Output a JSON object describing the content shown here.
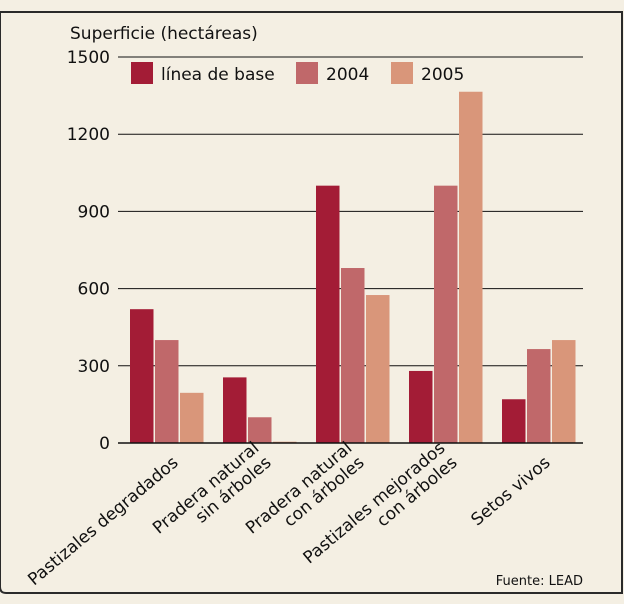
{
  "chart_data": {
    "type": "bar",
    "title": "",
    "ylabel": "Superficie (hectáreas)",
    "xlabel": "",
    "ylim": [
      0,
      1500
    ],
    "yticks": [
      0,
      300,
      600,
      900,
      1200,
      1500
    ],
    "grid": true,
    "legend_position": "top",
    "categories": [
      [
        "Pastizales degradados"
      ],
      [
        "Pradera natural",
        "sin árboles"
      ],
      [
        "Pradera natural",
        "con árboles"
      ],
      [
        "Pastizales mejorados",
        "con árboles"
      ],
      [
        "Setos vivos"
      ]
    ],
    "series": [
      {
        "name": "línea de base",
        "color": "#a31c36",
        "values": [
          520,
          255,
          1000,
          280,
          170
        ]
      },
      {
        "name": "2004",
        "color": "#c0686a",
        "values": [
          400,
          100,
          680,
          1000,
          365
        ]
      },
      {
        "name": "2005",
        "color": "#d9967a",
        "values": [
          195,
          5,
          575,
          1365,
          400
        ]
      }
    ],
    "source": "Fuente: LEAD"
  }
}
